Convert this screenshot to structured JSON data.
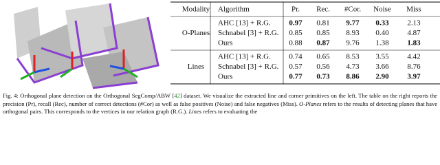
{
  "table": {
    "header": [
      "Modality",
      "Algorithm",
      "Pr.",
      "Rec.",
      "#Cor.",
      "Noise",
      "Miss"
    ],
    "groups": [
      {
        "modality": "O-Planes",
        "rows": [
          {
            "algorithm": "AHC [13] + R.G.",
            "values": [
              "0.97",
              "0.81",
              "9.77",
              "0.33",
              "2.13"
            ],
            "bold": [
              true,
              false,
              true,
              true,
              false
            ]
          },
          {
            "algorithm": "Schnabel [3] + R.G.",
            "values": [
              "0.85",
              "0.85",
              "8.93",
              "0.40",
              "4.87"
            ],
            "bold": [
              false,
              false,
              false,
              false,
              false
            ]
          },
          {
            "algorithm": "Ours",
            "values": [
              "0.88",
              "0.87",
              "9.76",
              "1.38",
              "1.83"
            ],
            "bold": [
              false,
              true,
              false,
              false,
              true
            ]
          }
        ]
      },
      {
        "modality": "Lines",
        "rows": [
          {
            "algorithm": "AHC [13] + R.G.",
            "values": [
              "0.74",
              "0.65",
              "8.53",
              "3.55",
              "4.42"
            ],
            "bold": [
              false,
              false,
              false,
              false,
              false
            ]
          },
          {
            "algorithm": "Schnabel [3] + R.G.",
            "values": [
              "0.57",
              "0.56",
              "4.73",
              "3.66",
              "8.76"
            ],
            "bold": [
              false,
              false,
              false,
              false,
              false
            ]
          },
          {
            "algorithm": "Ours",
            "values": [
              "0.77",
              "0.73",
              "8.86",
              "2.90",
              "3.97"
            ],
            "bold": [
              true,
              true,
              true,
              true,
              true
            ]
          }
        ]
      }
    ]
  },
  "caption": [
    {
      "text": "Fig. 4: Orthogonal plane detection on the Orthogonal SegComp/ABW [",
      "style": "plain"
    },
    {
      "text": "42",
      "style": "cite"
    },
    {
      "text": "] dataset. We visualize the extracted line and corner primitives on the left. The table on the right reports the precision (Pr), recall (Rec), number of correct detections (#Cor) as well as false positives (Noise) and false negatives (Miss). ",
      "style": "plain"
    },
    {
      "text": "O-Planes",
      "style": "italic"
    },
    {
      "text": " refers to the results of detecting planes that have orthogonal pairs. This corresponds to the vertices in our relation graph (R.G.). ",
      "style": "plain"
    },
    {
      "text": "Lines",
      "style": "italic"
    },
    {
      "text": " refers to evaluating the",
      "style": "plain"
    }
  ]
}
